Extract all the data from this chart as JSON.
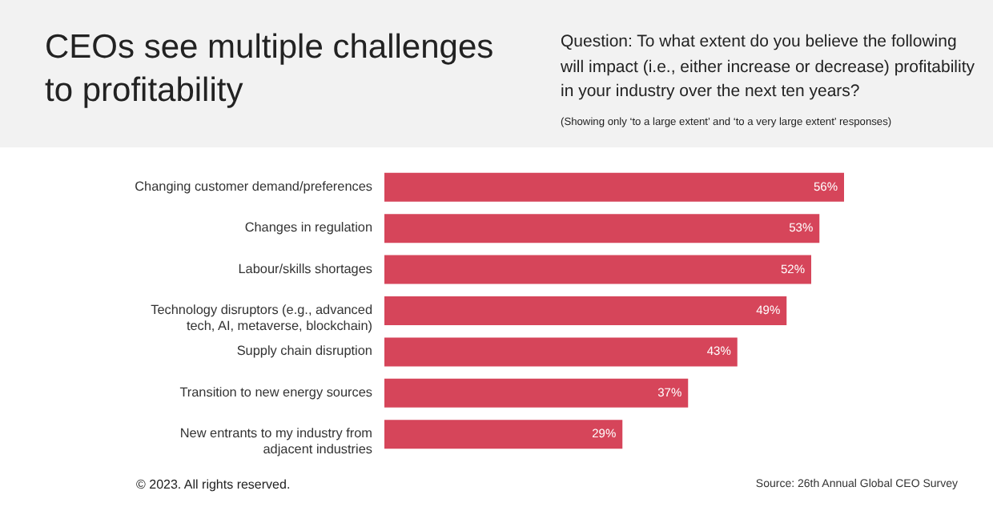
{
  "chart_data": {
    "type": "bar",
    "orientation": "horizontal",
    "title": "CEOs see multiple challenges to profitability",
    "subtitle": "Question: To what extent do you believe the following will impact (i.e., either increase or decrease) profitability in your industry over the next ten years?",
    "annotations": [
      "(Showing only ‘to a large extent’ and ‘to a very large extent’ responses)",
      "© 2023. All rights reserved.",
      "Source: 26th Annual Global CEO Survey"
    ],
    "categories": [
      "Changing customer demand/preferences",
      "Changes in regulation",
      "Labour/skills shortages",
      "Technology disruptors (e.g., advanced tech, AI, metaverse, blockchain)",
      "Supply chain disruption",
      "Transition to new energy sources",
      "New entrants to my industry from adjacent industries"
    ],
    "values": [
      56,
      53,
      52,
      49,
      43,
      37,
      29
    ],
    "value_labels": [
      "56%",
      "53%",
      "52%",
      "49%",
      "43%",
      "37%",
      "29%"
    ],
    "color": "#d6455a"
  }
}
